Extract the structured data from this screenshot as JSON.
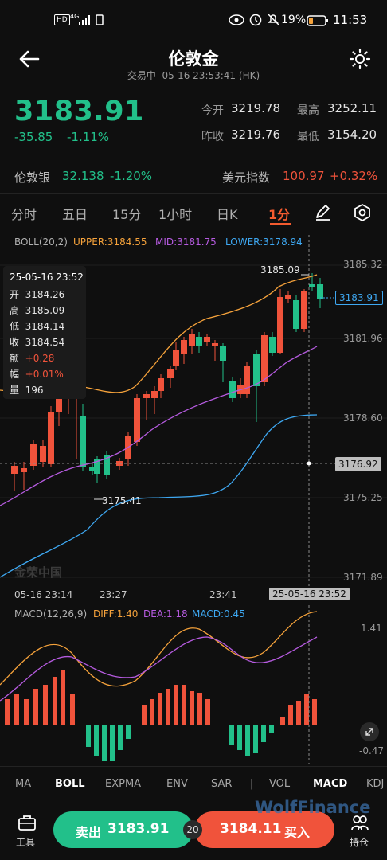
{
  "status_bar": {
    "badges": [
      "HD",
      "4G"
    ],
    "battery": "19%",
    "time": "11:53"
  },
  "header": {
    "title": "伦敦金",
    "status": "交易中",
    "datetime": "05-16 23:53:41",
    "market": "(HK)"
  },
  "quote": {
    "price": "3183.91",
    "change": "-35.85",
    "change_pct": "-1.11%",
    "open_label": "今开",
    "open": "3219.78",
    "high_label": "最高",
    "high": "3252.11",
    "prev_close_label": "昨收",
    "prev_close": "3219.76",
    "low_label": "最低",
    "low": "3154.20"
  },
  "related": {
    "silver_label": "伦敦银",
    "silver_price": "32.138",
    "silver_pct": "-1.20%",
    "dxy_label": "美元指数",
    "dxy_price": "100.97",
    "dxy_pct": "+0.32%"
  },
  "tabs": [
    "分时",
    "五日",
    "15分",
    "1小时",
    "日K",
    "1分"
  ],
  "active_tab": "1分",
  "boll_legend": {
    "name": "BOLL(20,2)",
    "upper": "UPPER:3184.55",
    "mid": "MID:3181.75",
    "lower": "LOWER:3178.94"
  },
  "kchart": {
    "y_ticks": [
      "3185.32",
      "3181.96",
      "3178.60",
      "3175.25",
      "3171.89"
    ],
    "x_ticks": [
      "05-16 23:14",
      "23:27",
      "23:41"
    ],
    "crosshair_time": "25-05-16 23:52",
    "current_price_tag": "3183.91",
    "crosshair_price_tag": "3176.92",
    "max_label": "3185.09",
    "min_label": "3175.41",
    "watermark": "金荣中国"
  },
  "tooltip": {
    "datetime": "25-05-16 23:52",
    "rows": [
      {
        "label": "开",
        "value": "3184.26"
      },
      {
        "label": "高",
        "value": "3185.09"
      },
      {
        "label": "低",
        "value": "3184.14"
      },
      {
        "label": "收",
        "value": "3184.54"
      },
      {
        "label": "额",
        "value": "+0.28"
      },
      {
        "label": "幅",
        "value": "+0.01%"
      },
      {
        "label": "量",
        "value": "196"
      }
    ]
  },
  "macd_legend": {
    "name": "MACD(12,26,9)",
    "diff": "DIFF:1.40",
    "dea": "DEA:1.18",
    "macd": "MACD:0.45"
  },
  "macd_axis": {
    "top": "1.41",
    "bottom": "-0.47"
  },
  "indicators": [
    "MA",
    "BOLL",
    "EXPMA",
    "ENV",
    "SAR",
    "|",
    "VOL",
    "MACD",
    "KDJ"
  ],
  "active_indicators": [
    "BOLL",
    "MACD"
  ],
  "bottom_bar": {
    "tools_label": "工具",
    "sell_label": "卖出",
    "sell_price": "3183.91",
    "leverage": "20",
    "buy_price": "3184.11",
    "buy_label": "买入",
    "positions_label": "持仓",
    "watermark": "WolfFinance"
  },
  "colors": {
    "up": "#f0533b",
    "down": "#22c08a",
    "upper": "#f5a23b",
    "mid": "#b65be0",
    "lower": "#3ea8f2",
    "accent": "#f45b2f"
  }
}
